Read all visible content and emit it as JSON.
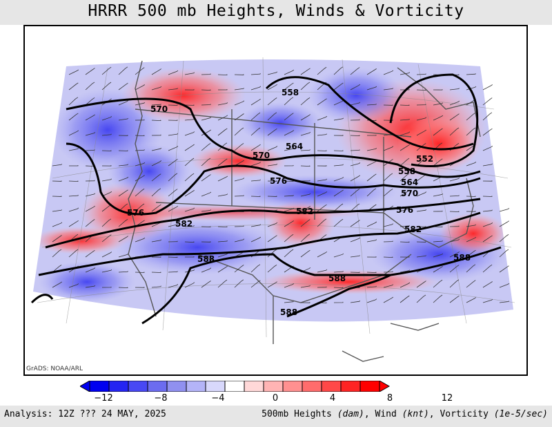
{
  "title": "HRRR 500 mb Heights, Winds & Vorticity",
  "credit": "GrADS: NOAA/ARL",
  "analysis": "Analysis: 12Z ??? 24 MAY, 2025",
  "fields": {
    "heights": "500mb Heights ",
    "heights_unit": "(dam)",
    "wind": ", Wind ",
    "wind_unit": "(knt)",
    "vort": ", Vorticity ",
    "vort_unit": "(1e-5/sec)"
  },
  "colorbar": {
    "tick_labels": [
      "−12",
      "−8",
      "−4",
      "0",
      "4",
      "8",
      "12"
    ],
    "colors": [
      "#0000f0",
      "#2424f2",
      "#4848f4",
      "#6c6cf0",
      "#9090f0",
      "#b4b4f8",
      "#d8d8fc",
      "#ffffff",
      "#ffd8d8",
      "#ffb4b4",
      "#ff9090",
      "#ff6c6c",
      "#ff4848",
      "#ff2424",
      "#ff0000"
    ]
  },
  "contour_labels": [
    "558",
    "570",
    "564",
    "570",
    "552",
    "558",
    "564",
    "570",
    "576",
    "576",
    "576",
    "582",
    "582",
    "582",
    "588",
    "588",
    "588",
    "588"
  ]
}
